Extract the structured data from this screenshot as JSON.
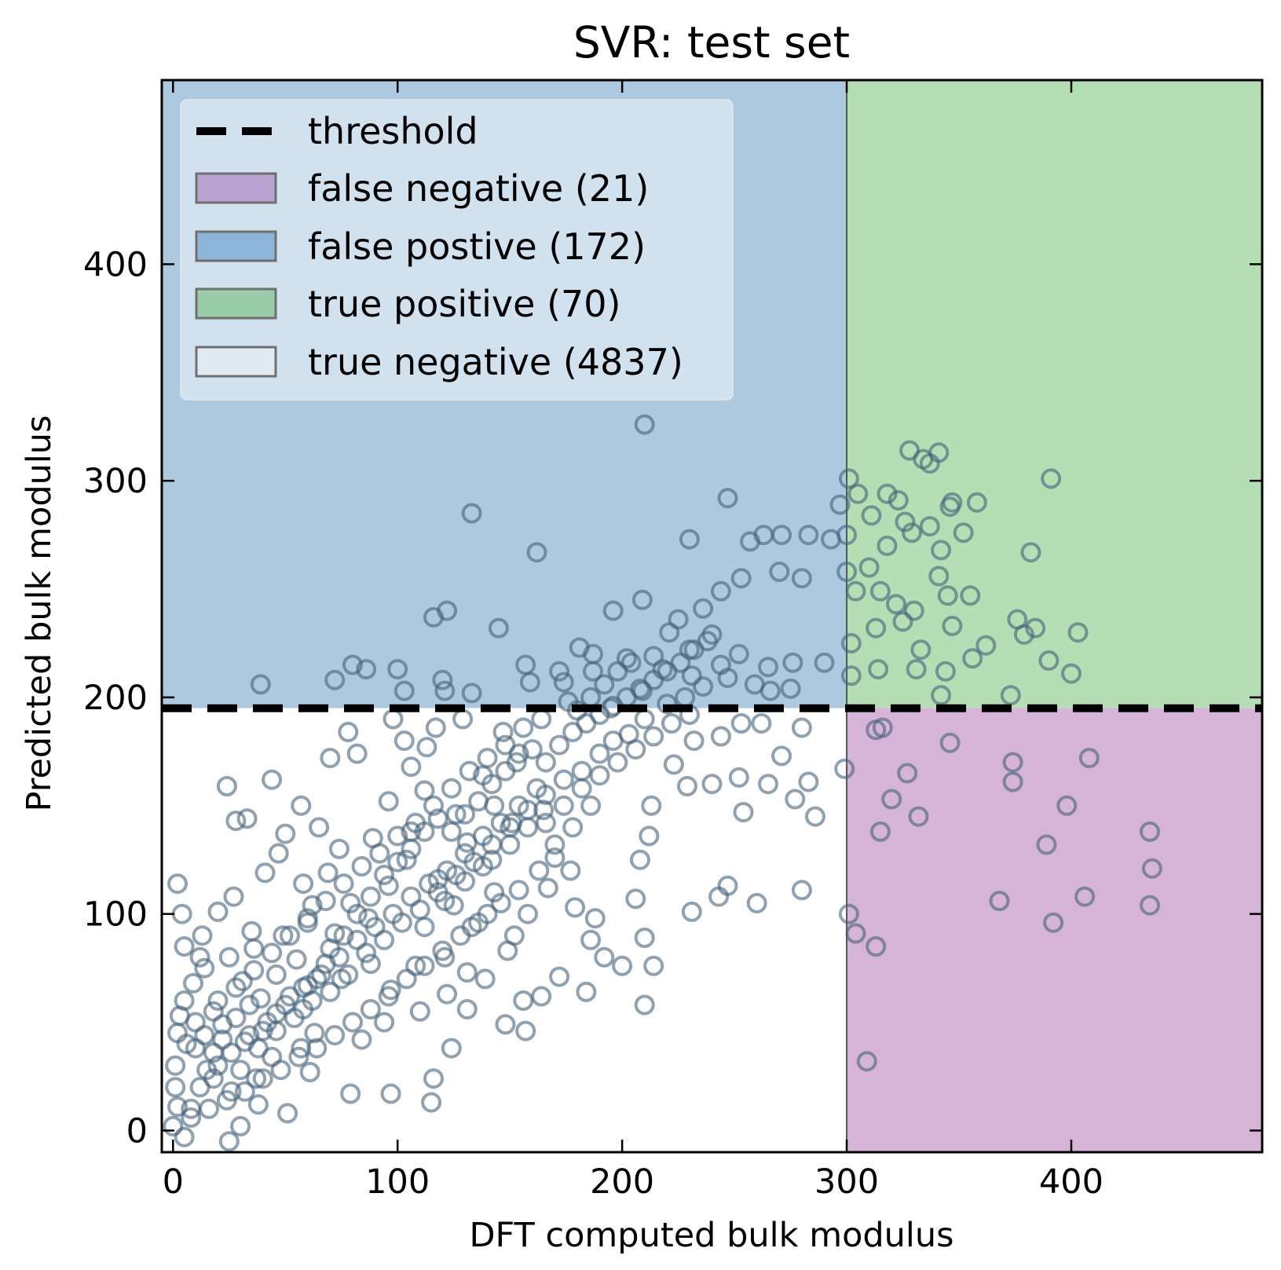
{
  "chart_data": {
    "type": "scatter",
    "title": "SVR: test set",
    "xlabel": "DFT computed bulk modulus",
    "ylabel": "Predicted bulk modulus",
    "xlim": [
      -5,
      485
    ],
    "ylim": [
      -10,
      485
    ],
    "xticks": [
      0,
      100,
      200,
      300,
      400
    ],
    "yticks": [
      0,
      100,
      200,
      300,
      400
    ],
    "threshold": {
      "x": 300,
      "y": 195
    },
    "legend": {
      "position": "upper-left",
      "threshold_label": "threshold",
      "false_negative_label": "false negative (21)",
      "false_positive_label": "false postive (172)",
      "true_positive_label": "true positive (70)",
      "true_negative_label": "true negative (4837)"
    },
    "colors": {
      "false_negative": "#d6b4d8",
      "false_positive": "#adc9e0",
      "true_positive": "#b4deb4",
      "true_negative": "#ffffff",
      "legend_false_negative": "#b8a2cf",
      "legend_false_positive": "#8fb4d9",
      "legend_true_positive": "#9acca8",
      "legend_true_negative": "#e0eaf3",
      "marker": "#46627a",
      "threshold_line": "#000000"
    },
    "points": [
      [
        210,
        326
      ],
      [
        391,
        301
      ],
      [
        133,
        285
      ],
      [
        162,
        267
      ],
      [
        247,
        292
      ],
      [
        328,
        314
      ],
      [
        341,
        313
      ],
      [
        334,
        310
      ],
      [
        337,
        308
      ],
      [
        301,
        301
      ],
      [
        297,
        289
      ],
      [
        305,
        294
      ],
      [
        318,
        294
      ],
      [
        323,
        291
      ],
      [
        347,
        290
      ],
      [
        358,
        290
      ],
      [
        346,
        288
      ],
      [
        352,
        276
      ],
      [
        382,
        267
      ],
      [
        300,
        275
      ],
      [
        311,
        284
      ],
      [
        326,
        281
      ],
      [
        329,
        276
      ],
      [
        337,
        279
      ],
      [
        342,
        268
      ],
      [
        318,
        270
      ],
      [
        310,
        260
      ],
      [
        304,
        249
      ],
      [
        315,
        249
      ],
      [
        322,
        243
      ],
      [
        330,
        240
      ],
      [
        341,
        256
      ],
      [
        345,
        247
      ],
      [
        355,
        247
      ],
      [
        325,
        235
      ],
      [
        347,
        233
      ],
      [
        313,
        232
      ],
      [
        376,
        236
      ],
      [
        384,
        232
      ],
      [
        379,
        229
      ],
      [
        362,
        224
      ],
      [
        403,
        230
      ],
      [
        356,
        218
      ],
      [
        390,
        217
      ],
      [
        333,
        222
      ],
      [
        331,
        213
      ],
      [
        314,
        213
      ],
      [
        302,
        225
      ],
      [
        344,
        212
      ],
      [
        400,
        211
      ],
      [
        302,
        210
      ],
      [
        373,
        201
      ],
      [
        342,
        201
      ],
      [
        300,
        258
      ],
      [
        230,
        273
      ],
      [
        257,
        272
      ],
      [
        263,
        275
      ],
      [
        271,
        275
      ],
      [
        283,
        275
      ],
      [
        293,
        273
      ],
      [
        280,
        255
      ],
      [
        270,
        258
      ],
      [
        253,
        255
      ],
      [
        244,
        249
      ],
      [
        236,
        241
      ],
      [
        225,
        236
      ],
      [
        221,
        230
      ],
      [
        209,
        245
      ],
      [
        196,
        240
      ],
      [
        187,
        220
      ],
      [
        181,
        223
      ],
      [
        172,
        212
      ],
      [
        157,
        215
      ],
      [
        145,
        232
      ],
      [
        122,
        240
      ],
      [
        116,
        237
      ],
      [
        86,
        213
      ],
      [
        80,
        215
      ],
      [
        72,
        208
      ],
      [
        39,
        206
      ],
      [
        103,
        203
      ],
      [
        120,
        208
      ],
      [
        100,
        213
      ],
      [
        121,
        203
      ],
      [
        133,
        202
      ],
      [
        174,
        207
      ],
      [
        159,
        207
      ],
      [
        187,
        212
      ],
      [
        202,
        218
      ],
      [
        214,
        219
      ],
      [
        218,
        213
      ],
      [
        231,
        210
      ],
      [
        247,
        209
      ],
      [
        259,
        206
      ],
      [
        265,
        214
      ],
      [
        276,
        216
      ],
      [
        290,
        216
      ],
      [
        266,
        203
      ],
      [
        275,
        204
      ],
      [
        240,
        229
      ],
      [
        230,
        222
      ],
      [
        209,
        203
      ],
      [
        195,
        195
      ],
      [
        253,
        188
      ],
      [
        262,
        188
      ],
      [
        280,
        186
      ],
      [
        299,
        167
      ],
      [
        316,
        186
      ],
      [
        313,
        185
      ],
      [
        320,
        153
      ],
      [
        315,
        138
      ],
      [
        332,
        145
      ],
      [
        327,
        165
      ],
      [
        346,
        179
      ],
      [
        374,
        170
      ],
      [
        374,
        161
      ],
      [
        408,
        172
      ],
      [
        398,
        150
      ],
      [
        389,
        132
      ],
      [
        435,
        138
      ],
      [
        436,
        121
      ],
      [
        368,
        106
      ],
      [
        406,
        108
      ],
      [
        435,
        104
      ],
      [
        392,
        96
      ],
      [
        309,
        32
      ],
      [
        313,
        85
      ],
      [
        301,
        100
      ],
      [
        304,
        91
      ],
      [
        271,
        173
      ],
      [
        265,
        160
      ],
      [
        277,
        153
      ],
      [
        286,
        145
      ],
      [
        283,
        161
      ],
      [
        232,
        180
      ],
      [
        223,
        169
      ],
      [
        244,
        182
      ],
      [
        252,
        163
      ],
      [
        254,
        147
      ],
      [
        240,
        160
      ],
      [
        229,
        159
      ],
      [
        213,
        150
      ],
      [
        212,
        136
      ],
      [
        208,
        125
      ],
      [
        206,
        107
      ],
      [
        210,
        89
      ],
      [
        214,
        76
      ],
      [
        200,
        76
      ],
      [
        210,
        58
      ],
      [
        231,
        101
      ],
      [
        243,
        108
      ],
      [
        247,
        113
      ],
      [
        260,
        105
      ],
      [
        280,
        111
      ],
      [
        179,
        103
      ],
      [
        188,
        98
      ],
      [
        186,
        88
      ],
      [
        192,
        80
      ],
      [
        184,
        64
      ],
      [
        172,
        71
      ],
      [
        164,
        62
      ],
      [
        156,
        60
      ],
      [
        157,
        46
      ],
      [
        148,
        49
      ],
      [
        131,
        56
      ],
      [
        124,
        38
      ],
      [
        116,
        24
      ],
      [
        115,
        13
      ],
      [
        97,
        17
      ],
      [
        79,
        17
      ],
      [
        61,
        27
      ],
      [
        51,
        8
      ],
      [
        37,
        24
      ],
      [
        2,
        114
      ],
      [
        4,
        100
      ],
      [
        5,
        85
      ],
      [
        12,
        80
      ],
      [
        14,
        75
      ],
      [
        9,
        68
      ],
      [
        5,
        60
      ],
      [
        3,
        53
      ],
      [
        2,
        45
      ],
      [
        1,
        30
      ],
      [
        1,
        20
      ],
      [
        2,
        11
      ],
      [
        0,
        2
      ],
      [
        25,
        -5
      ],
      [
        30,
        2
      ],
      [
        38,
        12
      ],
      [
        24,
        159
      ],
      [
        28,
        143
      ],
      [
        33,
        144
      ],
      [
        44,
        162
      ],
      [
        50,
        137
      ],
      [
        57,
        150
      ],
      [
        65,
        140
      ],
      [
        70,
        172
      ],
      [
        78,
        184
      ],
      [
        82,
        174
      ],
      [
        98,
        190
      ],
      [
        103,
        180
      ],
      [
        106,
        168
      ],
      [
        113,
        177
      ],
      [
        117,
        186
      ],
      [
        129,
        190
      ],
      [
        147,
        184
      ],
      [
        153,
        170
      ],
      [
        138,
        164
      ],
      [
        143,
        150
      ],
      [
        151,
        142
      ],
      [
        165,
        148
      ],
      [
        170,
        132
      ],
      [
        177,
        120
      ],
      [
        167,
        112
      ],
      [
        158,
        100
      ],
      [
        140,
        100
      ],
      [
        149,
        83
      ],
      [
        152,
        90
      ],
      [
        139,
        70
      ],
      [
        131,
        73
      ],
      [
        121,
        80
      ],
      [
        122,
        63
      ],
      [
        110,
        55
      ],
      [
        94,
        50
      ],
      [
        84,
        42
      ],
      [
        63,
        45
      ],
      [
        57,
        38
      ],
      [
        44,
        34
      ],
      [
        32,
        41
      ],
      [
        22,
        49
      ],
      [
        18,
        55
      ],
      [
        10,
        38
      ],
      [
        15,
        28
      ],
      [
        26,
        18
      ],
      [
        8,
        10
      ],
      [
        5,
        -3
      ],
      [
        13,
        90
      ],
      [
        20,
        101
      ],
      [
        27,
        108
      ],
      [
        35,
        92
      ],
      [
        41,
        119
      ],
      [
        47,
        128
      ],
      [
        58,
        114
      ],
      [
        62,
        104
      ],
      [
        69,
        119
      ],
      [
        74,
        130
      ],
      [
        89,
        135
      ],
      [
        96,
        152
      ],
      [
        106,
        138
      ],
      [
        112,
        157
      ],
      [
        126,
        146
      ],
      [
        131,
        133
      ],
      [
        138,
        122
      ],
      [
        143,
        110
      ],
      [
        133,
        94
      ],
      [
        125,
        104
      ],
      [
        118,
        116
      ],
      [
        104,
        125
      ],
      [
        96,
        113
      ],
      [
        87,
        98
      ],
      [
        79,
        105
      ],
      [
        72,
        91
      ],
      [
        68,
        77
      ],
      [
        60,
        67
      ],
      [
        55,
        79
      ],
      [
        46,
        72
      ],
      [
        39,
        61
      ],
      [
        31,
        69
      ],
      [
        25,
        80
      ],
      [
        36,
        84
      ],
      [
        49,
        90
      ],
      [
        60,
        96
      ],
      [
        75,
        70
      ],
      [
        88,
        77
      ],
      [
        97,
        65
      ],
      [
        108,
        76
      ],
      [
        112,
        94
      ],
      [
        121,
        106
      ],
      [
        130,
        115
      ],
      [
        142,
        125
      ],
      [
        150,
        132
      ],
      [
        158,
        140
      ],
      [
        166,
        155
      ],
      [
        174,
        162
      ],
      [
        182,
        166
      ],
      [
        190,
        174
      ],
      [
        196,
        180
      ],
      [
        203,
        183
      ],
      [
        210,
        190
      ],
      [
        220,
        197
      ],
      [
        228,
        200
      ],
      [
        236,
        205
      ],
      [
        244,
        215
      ],
      [
        252,
        220
      ],
      [
        186,
        150
      ],
      [
        178,
        140
      ],
      [
        170,
        126
      ],
      [
        163,
        120
      ],
      [
        154,
        111
      ],
      [
        146,
        105
      ],
      [
        136,
        96
      ],
      [
        128,
        90
      ],
      [
        120,
        83
      ],
      [
        112,
        76
      ],
      [
        104,
        70
      ],
      [
        96,
        62
      ],
      [
        88,
        56
      ],
      [
        80,
        50
      ],
      [
        72,
        44
      ],
      [
        64,
        38
      ],
      [
        56,
        34
      ],
      [
        48,
        28
      ],
      [
        40,
        24
      ],
      [
        32,
        18
      ],
      [
        24,
        14
      ],
      [
        16,
        10
      ],
      [
        8,
        6
      ],
      [
        20,
        60
      ],
      [
        28,
        66
      ],
      [
        36,
        74
      ],
      [
        44,
        82
      ],
      [
        52,
        90
      ],
      [
        60,
        98
      ],
      [
        68,
        106
      ],
      [
        76,
        114
      ],
      [
        84,
        122
      ],
      [
        92,
        128
      ],
      [
        100,
        136
      ],
      [
        108,
        142
      ],
      [
        116,
        150
      ],
      [
        124,
        158
      ],
      [
        132,
        166
      ],
      [
        140,
        172
      ],
      [
        148,
        178
      ],
      [
        156,
        186
      ],
      [
        164,
        190
      ],
      [
        20,
        30
      ],
      [
        26,
        36
      ],
      [
        34,
        44
      ],
      [
        42,
        50
      ],
      [
        50,
        58
      ],
      [
        58,
        66
      ],
      [
        66,
        72
      ],
      [
        74,
        80
      ],
      [
        82,
        88
      ],
      [
        90,
        94
      ],
      [
        98,
        100
      ],
      [
        106,
        108
      ],
      [
        114,
        114
      ],
      [
        122,
        120
      ],
      [
        130,
        128
      ],
      [
        138,
        136
      ],
      [
        146,
        142
      ],
      [
        154,
        150
      ],
      [
        162,
        158
      ],
      [
        12,
        20
      ],
      [
        18,
        24
      ],
      [
        30,
        28
      ],
      [
        38,
        38
      ],
      [
        46,
        46
      ],
      [
        54,
        52
      ],
      [
        62,
        60
      ],
      [
        70,
        64
      ],
      [
        78,
        72
      ],
      [
        86,
        82
      ],
      [
        94,
        88
      ],
      [
        102,
        96
      ],
      [
        110,
        102
      ],
      [
        118,
        110
      ],
      [
        126,
        118
      ],
      [
        134,
        124
      ],
      [
        142,
        132
      ],
      [
        150,
        140
      ],
      [
        158,
        148
      ],
      [
        166,
        142
      ],
      [
        174,
        150
      ],
      [
        182,
        158
      ],
      [
        190,
        164
      ],
      [
        198,
        170
      ],
      [
        206,
        176
      ],
      [
        214,
        182
      ],
      [
        222,
        188
      ],
      [
        230,
        192
      ],
      [
        6,
        40
      ],
      [
        10,
        50
      ],
      [
        14,
        44
      ],
      [
        18,
        36
      ],
      [
        22,
        42
      ],
      [
        28,
        52
      ],
      [
        34,
        58
      ],
      [
        40,
        46
      ],
      [
        46,
        54
      ],
      [
        52,
        62
      ],
      [
        58,
        56
      ],
      [
        64,
        70
      ],
      [
        70,
        84
      ],
      [
        76,
        90
      ],
      [
        82,
        100
      ],
      [
        88,
        108
      ],
      [
        94,
        118
      ],
      [
        100,
        124
      ],
      [
        106,
        130
      ],
      [
        112,
        138
      ],
      [
        118,
        144
      ],
      [
        124,
        138
      ],
      [
        130,
        146
      ],
      [
        136,
        152
      ],
      [
        142,
        160
      ],
      [
        148,
        166
      ],
      [
        154,
        174
      ],
      [
        160,
        176
      ],
      [
        166,
        170
      ],
      [
        172,
        178
      ],
      [
        178,
        184
      ],
      [
        184,
        188
      ],
      [
        190,
        192
      ],
      [
        196,
        196
      ],
      [
        202,
        200
      ],
      [
        208,
        204
      ],
      [
        214,
        208
      ],
      [
        220,
        212
      ],
      [
        226,
        216
      ],
      [
        232,
        222
      ],
      [
        238,
        226
      ],
      [
        186,
        200
      ],
      [
        192,
        206
      ],
      [
        198,
        212
      ],
      [
        204,
        216
      ],
      [
        180,
        194
      ],
      [
        176,
        198
      ]
    ]
  }
}
